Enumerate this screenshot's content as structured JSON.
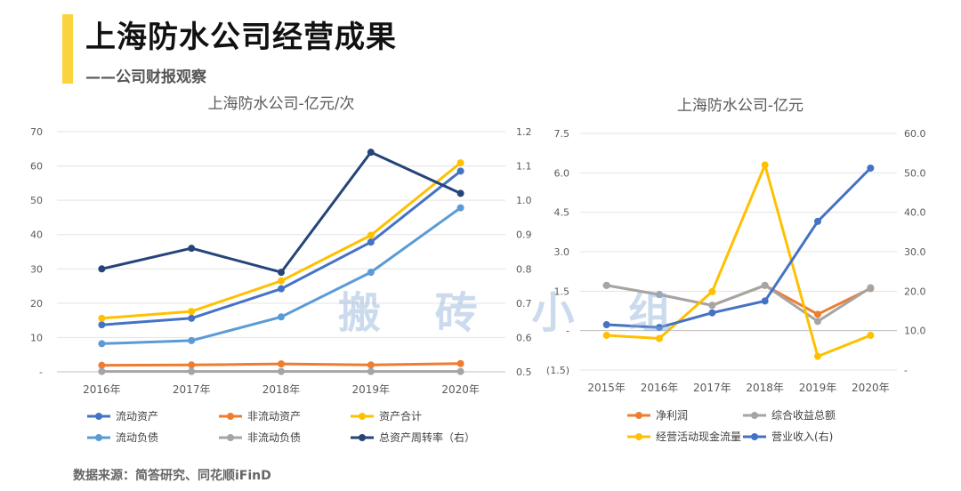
{
  "header": {
    "title": "上海防水公司经营成果",
    "subtitle": "——公司财报观察"
  },
  "footer": {
    "source": "数据来源：简答研究、同花顺iFinD"
  },
  "watermark": "搬 砖 小 组",
  "chart_data": [
    {
      "type": "line",
      "title": "上海防水公司-亿元/次",
      "categories": [
        "2016年",
        "2017年",
        "2018年",
        "2019年",
        "2020年"
      ],
      "ylim": [
        0,
        70
      ],
      "y_ticks": [
        "-",
        "10",
        "20",
        "30",
        "40",
        "50",
        "60",
        "70"
      ],
      "y2lim": [
        0.5,
        1.2
      ],
      "y2_ticks": [
        "0.5",
        "0.6",
        "0.7",
        "0.8",
        "0.9",
        "1.0",
        "1.1",
        "1.2"
      ],
      "series": [
        {
          "name": "流动资产",
          "color": "#4472c4",
          "axis": "left",
          "values": [
            13.7,
            15.6,
            24.2,
            37.8,
            58.5
          ]
        },
        {
          "name": "非流动资产",
          "color": "#ed7d31",
          "axis": "left",
          "values": [
            1.9,
            2.0,
            2.3,
            2.0,
            2.4
          ]
        },
        {
          "name": "资产合计",
          "color": "#ffc000",
          "axis": "left",
          "values": [
            15.6,
            17.6,
            26.5,
            39.8,
            60.9
          ]
        },
        {
          "name": "流动负债",
          "color": "#5b9bd5",
          "axis": "left",
          "values": [
            8.2,
            9.1,
            16.0,
            29.0,
            47.8
          ]
        },
        {
          "name": "非流动负债",
          "color": "#a5a5a5",
          "axis": "left",
          "values": [
            0.1,
            0.1,
            0.1,
            0.1,
            0.1
          ]
        },
        {
          "name": "总资产周转率（右）",
          "color": "#264478",
          "axis": "right",
          "values": [
            0.8,
            0.86,
            0.79,
            1.14,
            1.02
          ]
        }
      ]
    },
    {
      "type": "line",
      "title": "上海防水公司-亿元",
      "categories": [
        "2015年",
        "2016年",
        "2017年",
        "2018年",
        "2019年",
        "2020年"
      ],
      "ylim": [
        -1.5,
        7.5
      ],
      "y_ticks": [
        "(1.5)",
        "-",
        "1.5",
        "3.0",
        "4.5",
        "6.0",
        "7.5"
      ],
      "y2lim": [
        0,
        60
      ],
      "y2_ticks": [
        "-",
        "10.0",
        "20.0",
        "30.0",
        "40.0",
        "50.0",
        "60.0"
      ],
      "series": [
        {
          "name": "净利润",
          "color": "#ed7d31",
          "axis": "left",
          "values": [
            1.72,
            1.37,
            0.96,
            1.72,
            0.62,
            1.6
          ]
        },
        {
          "name": "综合收益总额",
          "color": "#a5a5a5",
          "axis": "left",
          "values": [
            1.72,
            1.37,
            0.96,
            1.72,
            0.35,
            1.63
          ]
        },
        {
          "name": "经营活动现金流量",
          "color": "#ffc000",
          "axis": "left",
          "values": [
            -0.18,
            -0.3,
            1.48,
            6.3,
            -0.98,
            -0.18
          ]
        },
        {
          "name": "营业收入(右)",
          "color": "#4472c4",
          "axis": "right",
          "values": [
            11.5,
            10.8,
            14.5,
            17.5,
            37.7,
            51.2
          ]
        }
      ]
    }
  ]
}
